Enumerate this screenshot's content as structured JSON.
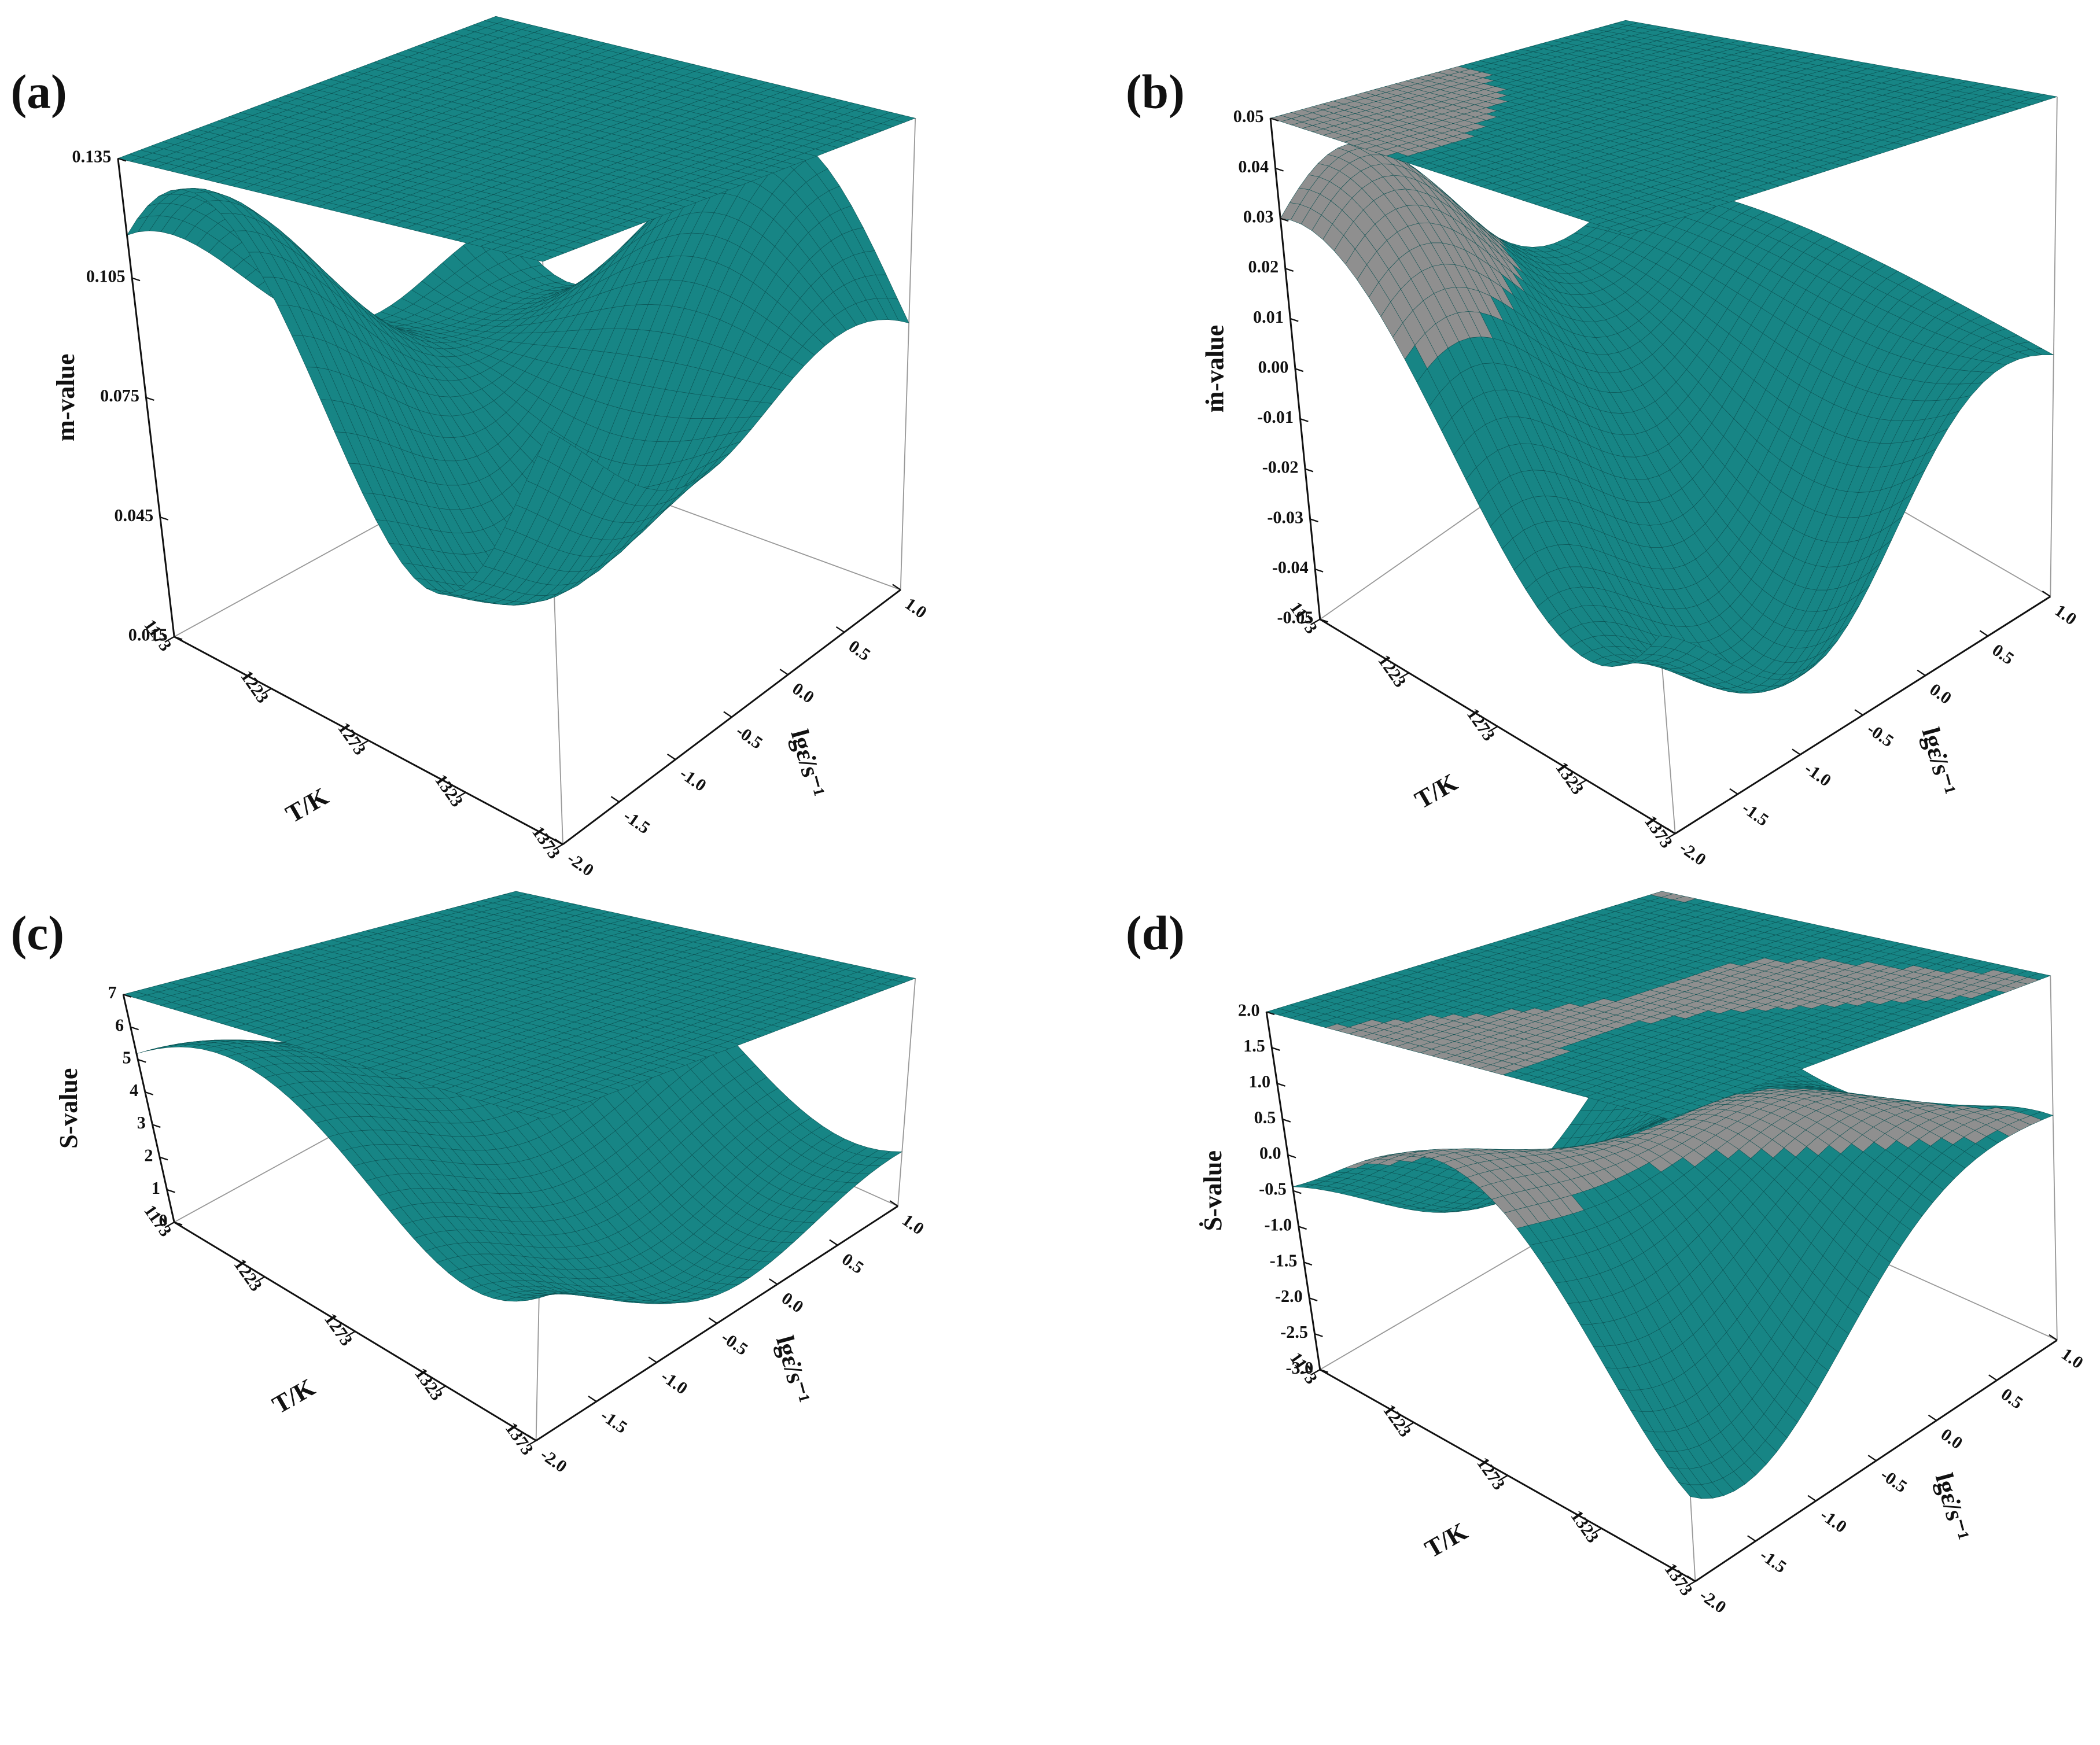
{
  "chart_data": [
    {
      "type": "surface",
      "panel_label": "(a)",
      "xlabel": "T/K",
      "ylabel": "lgε̇/s⁻¹",
      "zlabel": "m-value",
      "color": "#178585",
      "xlim": [
        1173,
        1373
      ],
      "xticks": [
        1173,
        1223,
        1273,
        1323,
        1373
      ],
      "ylim": [
        -2,
        1
      ],
      "yticks": [
        {
          "value": -2,
          "label": "-2.0"
        },
        -1.5,
        {
          "value": -1,
          "label": "-1.0"
        },
        -0.5,
        {
          "value": 0,
          "label": "0.0"
        },
        0.5,
        {
          "value": 1,
          "label": "1.0"
        }
      ],
      "zlim": [
        0.015,
        0.135
      ],
      "zticks": [
        0.015,
        0.045,
        0.075,
        0.105,
        0.135
      ]
    },
    {
      "type": "surface",
      "panel_label": "(b)",
      "xlabel": "T/K",
      "ylabel": "lgε̇/s⁻¹",
      "zlabel": "ṁ-value",
      "color": "#178585",
      "region_color": "#8f8f8f",
      "xlim": [
        1173,
        1373
      ],
      "xticks": [
        1173,
        1223,
        1273,
        1323,
        1373
      ],
      "ylim": [
        -2,
        1
      ],
      "yticks": [
        {
          "value": -2,
          "label": "-2.0"
        },
        -1.5,
        {
          "value": -1,
          "label": "-1.0"
        },
        -0.5,
        {
          "value": 0,
          "label": "0.0"
        },
        0.5,
        {
          "value": 1,
          "label": "1.0"
        }
      ],
      "zlim": [
        -0.05,
        0.05
      ],
      "zticks": [
        -0.05,
        -0.04,
        -0.03,
        -0.02,
        -0.01,
        {
          "value": 0,
          "label": "0.00"
        },
        0.01,
        0.02,
        0.03,
        0.04,
        0.05
      ]
    },
    {
      "type": "surface",
      "panel_label": "(c)",
      "xlabel": "T/K",
      "ylabel": "lgε̇/s⁻¹",
      "zlabel": "S-value",
      "color": "#178585",
      "xlim": [
        1173,
        1373
      ],
      "xticks": [
        1173,
        1223,
        1273,
        1323,
        1373
      ],
      "ylim": [
        -2,
        1
      ],
      "yticks": [
        {
          "value": -2,
          "label": "-2.0"
        },
        -1.5,
        {
          "value": -1,
          "label": "-1.0"
        },
        -0.5,
        {
          "value": 0,
          "label": "0.0"
        },
        0.5,
        {
          "value": 1,
          "label": "1.0"
        }
      ],
      "zlim": [
        0,
        7
      ],
      "zticks": [
        0,
        1,
        2,
        3,
        4,
        5,
        6,
        7
      ]
    },
    {
      "type": "surface",
      "panel_label": "(d)",
      "xlabel": "T/K",
      "ylabel": "lgε̇/s⁻¹",
      "zlabel": "Ṡ-value",
      "color": "#178585",
      "region_color": "#8f8f8f",
      "xlim": [
        1173,
        1373
      ],
      "xticks": [
        1173,
        1223,
        1273,
        1323,
        1373
      ],
      "ylim": [
        -2,
        1
      ],
      "yticks": [
        {
          "value": -2,
          "label": "-2.0"
        },
        -1.5,
        {
          "value": -1,
          "label": "-1.0"
        },
        -0.5,
        {
          "value": 0,
          "label": "0.0"
        },
        0.5,
        {
          "value": 1,
          "label": "1.0"
        }
      ],
      "zlim": [
        -3,
        2
      ],
      "zticks": [
        {
          "value": -3,
          "label": "-3.0"
        },
        -2.5,
        {
          "value": -2,
          "label": "-2.0"
        },
        -1.5,
        {
          "value": -1,
          "label": "-1.0"
        },
        -0.5,
        {
          "value": 0,
          "label": "0.0"
        },
        0.5,
        {
          "value": 1,
          "label": "1.0"
        },
        1.5,
        {
          "value": 2,
          "label": "2.0"
        }
      ]
    }
  ]
}
